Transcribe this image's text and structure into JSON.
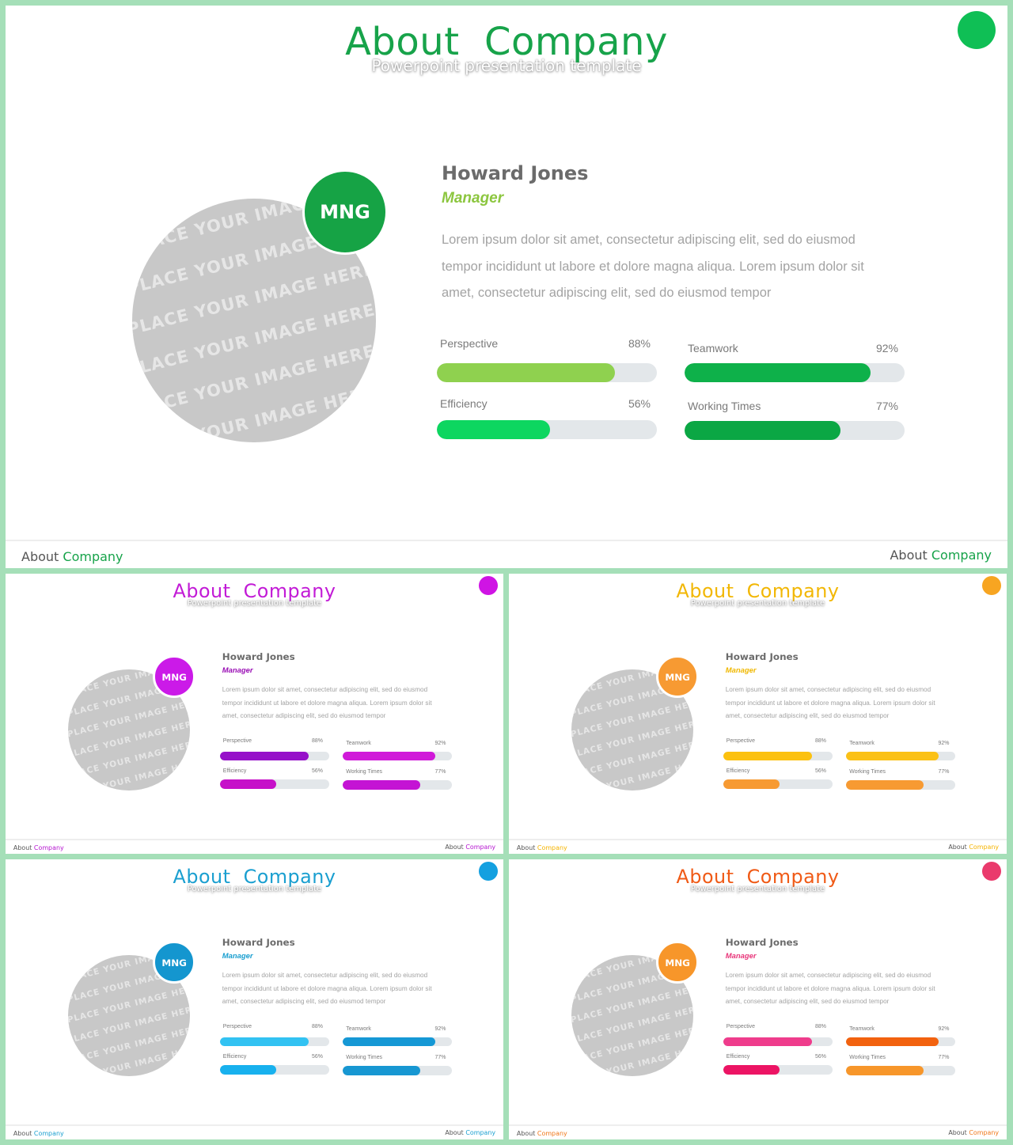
{
  "slide_title": {
    "word1": "About",
    "word2": "Company"
  },
  "slide_subtitle": "Powerpoint presentation template",
  "footer": {
    "word1": "About",
    "word2": "Company"
  },
  "profile": {
    "badge": "MNG",
    "name": "Howard Jones",
    "role": "Manager",
    "description": "Lorem ipsum dolor sit amet, consectetur adipiscing elit, sed do eiusmod tempor incididunt ut labore et dolore magna aliqua. Lorem ipsum dolor sit amet, consectetur adipiscing elit, sed do eiusmod tempor",
    "photo_placeholder_text": "~REPLACE YOUR IMAGE HERE~"
  },
  "skills": [
    {
      "label": "Perspective",
      "percent": 88,
      "percent_text": "88%"
    },
    {
      "label": "Teamwork",
      "percent": 92,
      "percent_text": "92%"
    },
    {
      "label": "Efficiency",
      "percent": 56,
      "percent_text": "56%"
    },
    {
      "label": "Working Times",
      "percent": 77,
      "percent_text": "77%"
    }
  ],
  "themes": [
    {
      "name": "green",
      "title": "#17a34a",
      "dot": "#0fbf55",
      "badge": "#16a345",
      "role": "#8cc63f",
      "footer": "#17a34a",
      "bars": [
        "#8fd14f",
        "#0eb14a",
        "#0dd660",
        "#0ba744"
      ]
    },
    {
      "name": "purple",
      "title": "#c21bd6",
      "dot": "#cf14e4",
      "badge": "#cb1ae8",
      "role": "#9a0fb5",
      "footer": "#b514d0",
      "bars": [
        "#9610c9",
        "#d01ad9",
        "#c611c9",
        "#c414d4"
      ]
    },
    {
      "name": "orange",
      "title": "#f2b705",
      "dot": "#f7a521",
      "badge": "#f79a32",
      "role": "#f0b800",
      "footer": "#f5b400",
      "bars": [
        "#fcc10f",
        "#fbc116",
        "#f79a32",
        "#f79a32"
      ]
    },
    {
      "name": "blue",
      "title": "#1a9fd0",
      "dot": "#14a0e0",
      "badge": "#1496cf",
      "role": "#1a9fd0",
      "footer": "#1a9fd0",
      "bars": [
        "#32c2f2",
        "#1598d5",
        "#18b1ee",
        "#1797d2"
      ]
    },
    {
      "name": "red",
      "title": "#f05a16",
      "dot": "#ea3a6c",
      "badge": "#f7962a",
      "role": "#e8367a",
      "footer": "#f0771a",
      "bars": [
        "#ef3c8c",
        "#f2620f",
        "#ec1464",
        "#f7962a"
      ]
    }
  ]
}
